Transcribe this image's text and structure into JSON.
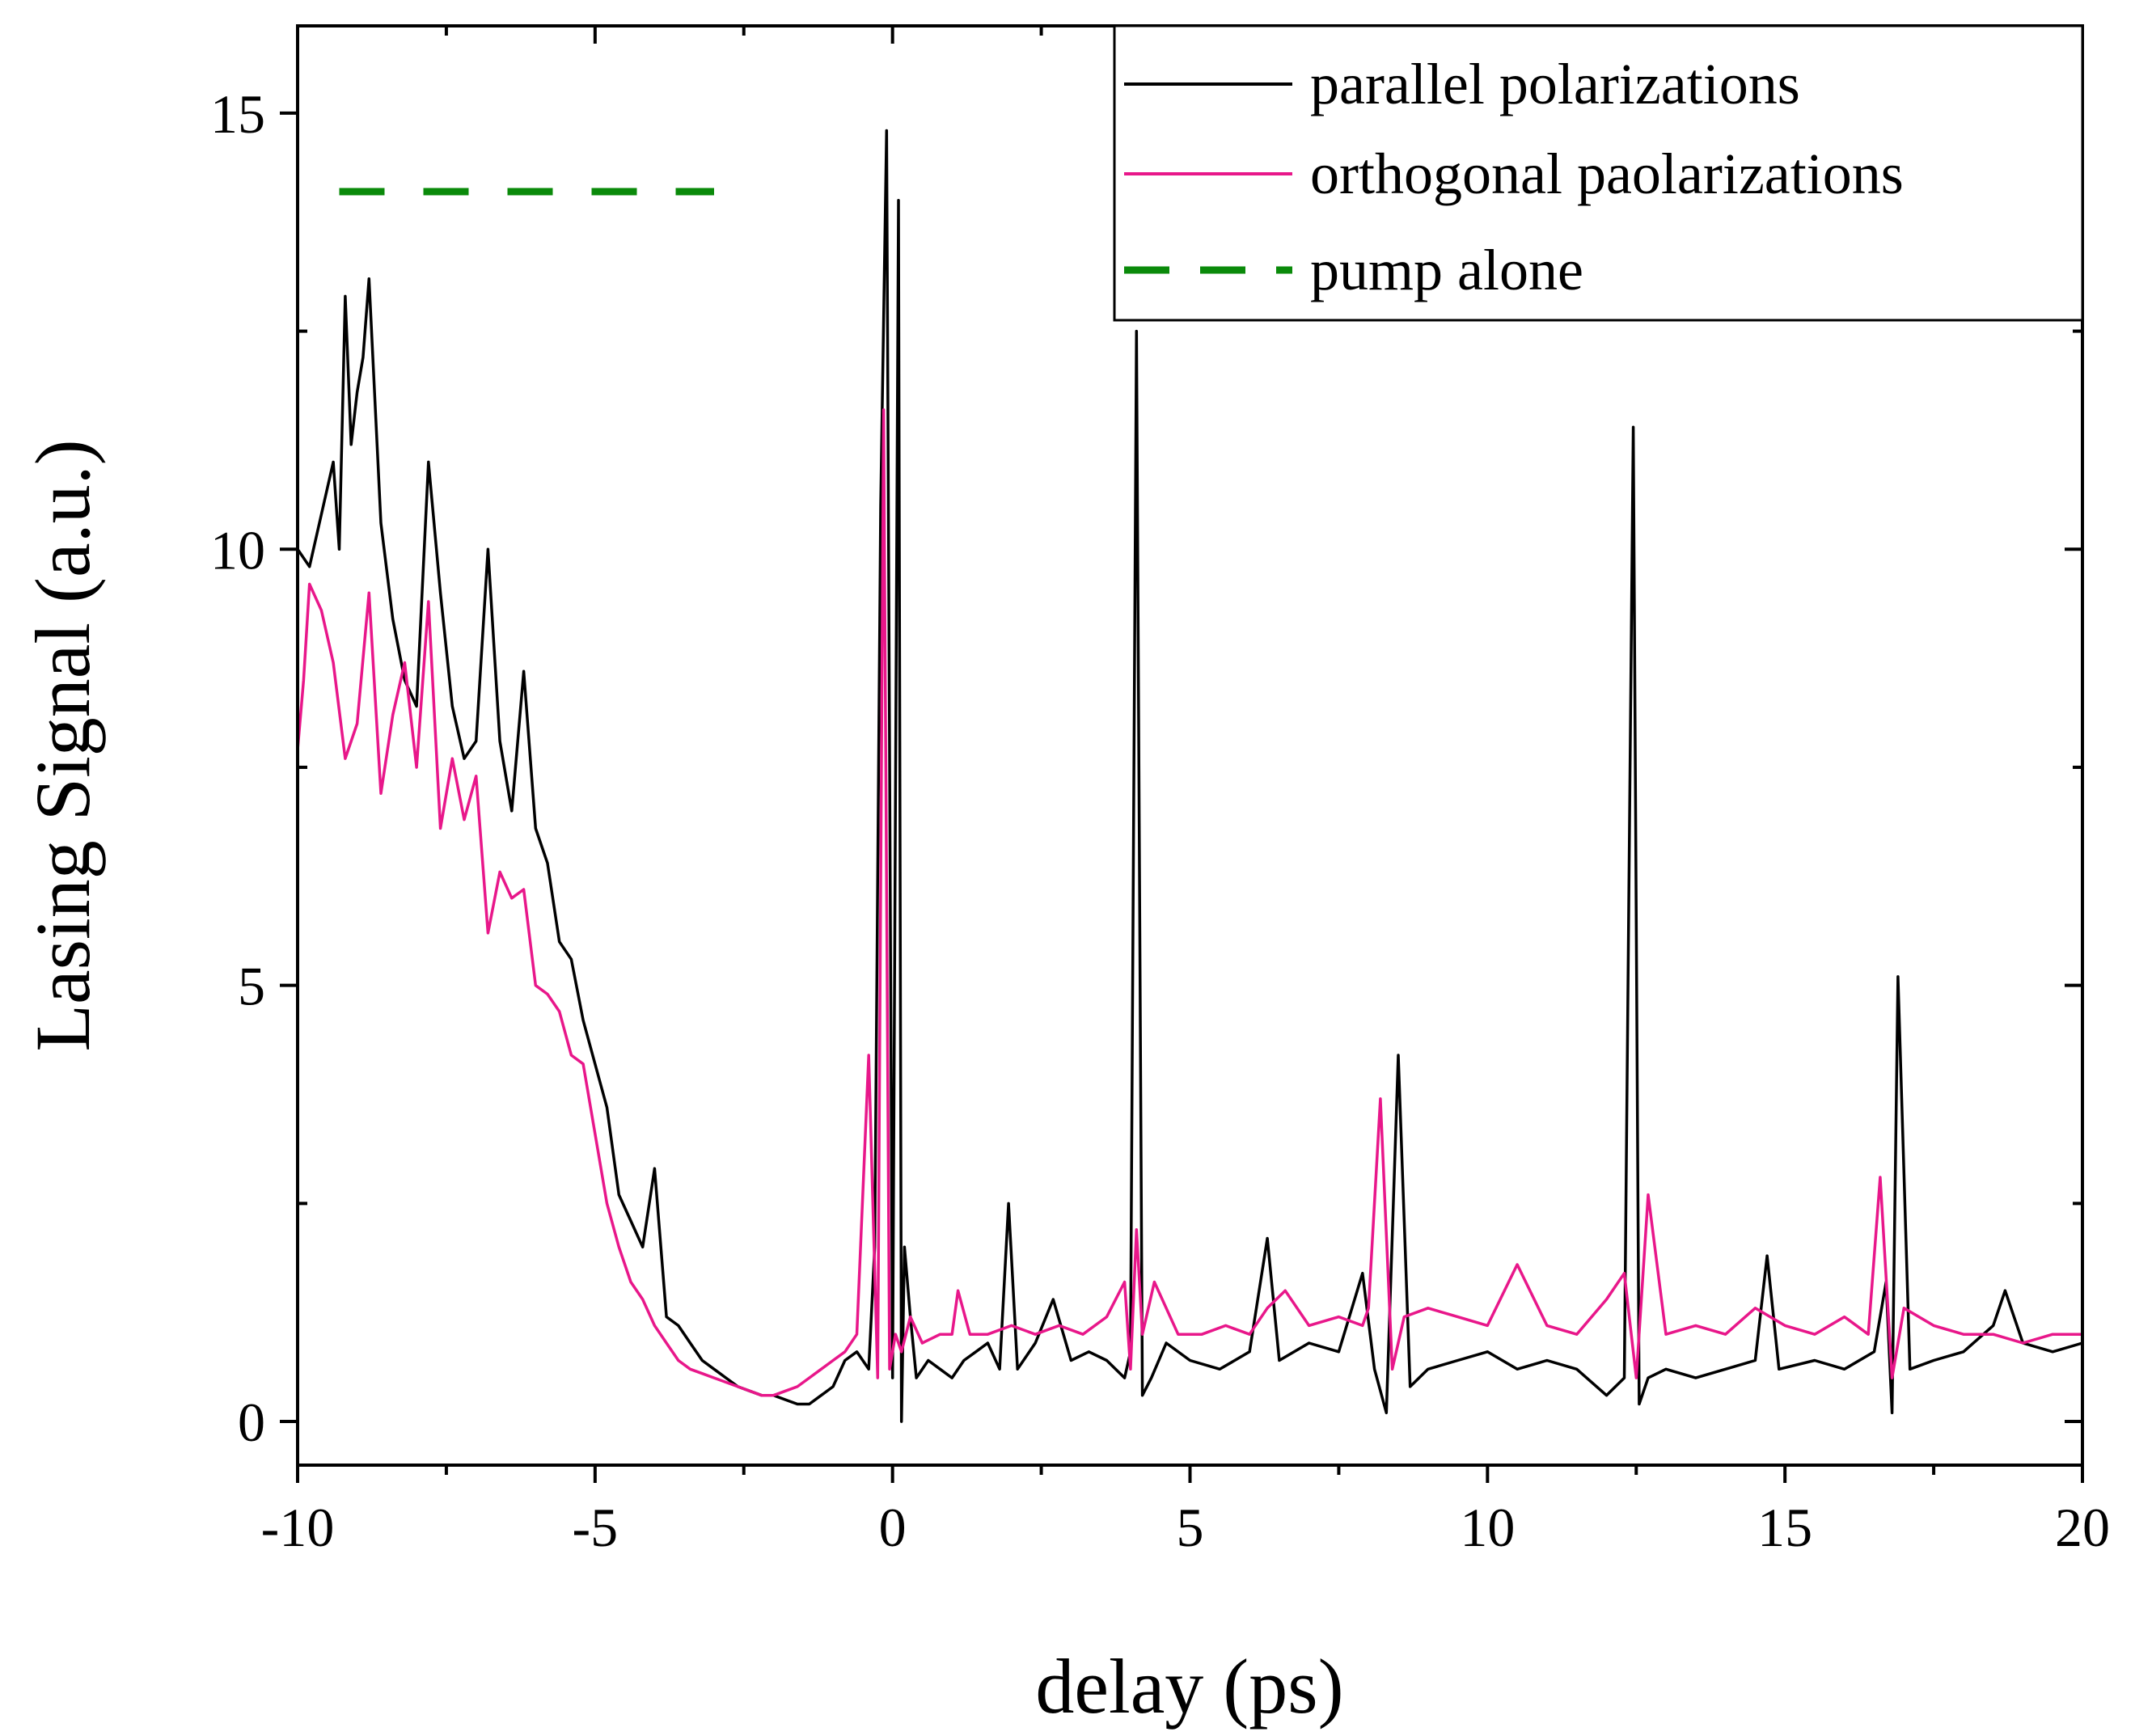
{
  "chart_data": {
    "type": "line",
    "title": "",
    "xlabel": "delay (ps)",
    "ylabel": "Lasing Signal (a.u.)",
    "xlim": [
      -10,
      20
    ],
    "ylim": [
      -0.5,
      16
    ],
    "x_ticks": [
      -10,
      -5,
      0,
      5,
      10,
      15,
      20
    ],
    "x_tick_labels": [
      "-10",
      "-5",
      "0",
      "5",
      "10",
      "15",
      "20"
    ],
    "y_ticks": [
      0,
      5,
      10,
      15
    ],
    "y_tick_labels": [
      "0",
      "5",
      "10",
      "15"
    ],
    "legend_position": "top-right",
    "series": [
      {
        "name": "parallel polarizations",
        "color": "#000000",
        "style": "solid",
        "x": [
          -10,
          -9.8,
          -9.6,
          -9.4,
          -9.3,
          -9.2,
          -9.1,
          -9.0,
          -8.9,
          -8.8,
          -8.6,
          -8.4,
          -8.2,
          -8.0,
          -7.8,
          -7.6,
          -7.4,
          -7.2,
          -7.0,
          -6.8,
          -6.6,
          -6.4,
          -6.2,
          -6.0,
          -5.8,
          -5.6,
          -5.4,
          -5.2,
          -5.0,
          -4.8,
          -4.6,
          -4.4,
          -4.2,
          -4.0,
          -3.8,
          -3.6,
          -3.4,
          -3.2,
          -3.0,
          -2.8,
          -2.6,
          -2.4,
          -2.2,
          -2.0,
          -1.8,
          -1.6,
          -1.4,
          -1.2,
          -1.0,
          -0.8,
          -0.6,
          -0.4,
          -0.3,
          -0.2,
          -0.1,
          0.0,
          0.1,
          0.15,
          0.2,
          0.3,
          0.4,
          0.6,
          0.8,
          1.0,
          1.2,
          1.4,
          1.6,
          1.8,
          1.95,
          2.1,
          2.4,
          2.7,
          3.0,
          3.3,
          3.6,
          3.9,
          4.0,
          4.1,
          4.2,
          4.35,
          4.6,
          5.0,
          5.5,
          6.0,
          6.3,
          6.5,
          7.0,
          7.5,
          7.9,
          8.1,
          8.3,
          8.5,
          8.7,
          9.0,
          9.5,
          10.0,
          10.5,
          11.0,
          11.5,
          12.0,
          12.3,
          12.45,
          12.55,
          12.7,
          13.0,
          13.5,
          14.0,
          14.5,
          14.7,
          14.9,
          15.5,
          16.0,
          16.5,
          16.7,
          16.8,
          16.9,
          17.1,
          17.5,
          18.0,
          18.5,
          18.7,
          19.0,
          19.5,
          20.0
        ],
        "values": [
          10.0,
          9.8,
          10.4,
          11.0,
          10.0,
          12.9,
          11.2,
          11.8,
          12.2,
          13.1,
          10.3,
          9.2,
          8.5,
          8.2,
          11.0,
          9.5,
          8.2,
          7.6,
          7.8,
          10.0,
          7.8,
          7.0,
          8.6,
          6.8,
          6.4,
          5.5,
          5.3,
          4.6,
          4.1,
          3.6,
          2.6,
          2.3,
          2.0,
          2.9,
          1.2,
          1.1,
          0.9,
          0.7,
          0.6,
          0.5,
          0.4,
          0.35,
          0.3,
          0.3,
          0.25,
          0.2,
          0.2,
          0.3,
          0.4,
          0.7,
          0.8,
          0.6,
          2.0,
          10.5,
          14.8,
          0.5,
          14.0,
          0.0,
          2.0,
          1.2,
          0.5,
          0.7,
          0.6,
          0.5,
          0.7,
          0.8,
          0.9,
          0.6,
          2.5,
          0.6,
          0.9,
          1.4,
          0.7,
          0.8,
          0.7,
          0.5,
          0.8,
          12.5,
          0.3,
          0.5,
          0.9,
          0.7,
          0.6,
          0.8,
          2.1,
          0.7,
          0.9,
          0.8,
          1.7,
          0.6,
          0.1,
          4.2,
          0.4,
          0.6,
          0.7,
          0.8,
          0.6,
          0.7,
          0.6,
          0.3,
          0.5,
          11.4,
          0.2,
          0.5,
          0.6,
          0.5,
          0.6,
          0.7,
          1.9,
          0.6,
          0.7,
          0.6,
          0.8,
          1.6,
          0.1,
          5.1,
          0.6,
          0.7,
          0.8,
          1.1,
          1.5,
          0.9,
          0.8,
          0.9
        ]
      },
      {
        "name": "orthogonal paolarizations",
        "color": "#e8178a",
        "style": "solid",
        "x": [
          -10,
          -9.9,
          -9.8,
          -9.6,
          -9.4,
          -9.2,
          -9.0,
          -8.8,
          -8.6,
          -8.4,
          -8.2,
          -8.0,
          -7.8,
          -7.6,
          -7.4,
          -7.2,
          -7.0,
          -6.8,
          -6.6,
          -6.4,
          -6.2,
          -6.0,
          -5.8,
          -5.6,
          -5.4,
          -5.2,
          -5.0,
          -4.8,
          -4.6,
          -4.4,
          -4.2,
          -4.0,
          -3.8,
          -3.6,
          -3.4,
          -3.2,
          -3.0,
          -2.8,
          -2.6,
          -2.4,
          -2.2,
          -2.0,
          -1.8,
          -1.6,
          -1.4,
          -1.2,
          -1.0,
          -0.8,
          -0.6,
          -0.4,
          -0.25,
          -0.15,
          -0.05,
          0.05,
          0.15,
          0.3,
          0.5,
          0.8,
          1.0,
          1.1,
          1.3,
          1.6,
          2.0,
          2.4,
          2.8,
          3.2,
          3.6,
          3.9,
          4.0,
          4.1,
          4.2,
          4.4,
          4.8,
          5.2,
          5.6,
          6.0,
          6.3,
          6.6,
          7.0,
          7.5,
          7.9,
          8.0,
          8.2,
          8.4,
          8.6,
          9.0,
          9.5,
          10.0,
          10.5,
          11.0,
          11.5,
          12.0,
          12.3,
          12.5,
          12.7,
          13.0,
          13.5,
          14.0,
          14.5,
          15.0,
          15.5,
          16.0,
          16.4,
          16.6,
          16.8,
          17.0,
          17.5,
          18.0,
          18.5,
          19.0,
          19.5,
          20.0
        ],
        "values": [
          7.7,
          8.5,
          9.6,
          9.3,
          8.7,
          7.6,
          8.0,
          9.5,
          7.2,
          8.1,
          8.7,
          7.5,
          9.4,
          6.8,
          7.6,
          6.9,
          7.4,
          5.6,
          6.3,
          6.0,
          6.1,
          5.0,
          4.9,
          4.7,
          4.2,
          4.1,
          3.3,
          2.5,
          2.0,
          1.6,
          1.4,
          1.1,
          0.9,
          0.7,
          0.6,
          0.55,
          0.5,
          0.45,
          0.4,
          0.35,
          0.3,
          0.3,
          0.35,
          0.4,
          0.5,
          0.6,
          0.7,
          0.8,
          1.0,
          4.2,
          0.5,
          11.6,
          0.6,
          1.0,
          0.8,
          1.2,
          0.9,
          1.0,
          1.0,
          1.5,
          1.0,
          1.0,
          1.1,
          1.0,
          1.1,
          1.0,
          1.2,
          1.6,
          0.6,
          2.2,
          1.0,
          1.6,
          1.0,
          1.0,
          1.1,
          1.0,
          1.3,
          1.5,
          1.1,
          1.2,
          1.1,
          1.3,
          3.7,
          0.6,
          1.2,
          1.3,
          1.2,
          1.1,
          1.8,
          1.1,
          1.0,
          1.4,
          1.7,
          0.5,
          2.6,
          1.0,
          1.1,
          1.0,
          1.3,
          1.1,
          1.0,
          1.2,
          1.0,
          2.8,
          0.5,
          1.3,
          1.1,
          1.0,
          1.0,
          0.9,
          1.0,
          1.0
        ]
      },
      {
        "name": "pump alone",
        "color": "#0a8a0a",
        "style": "dashed",
        "x": [
          -9.3,
          -3.0
        ],
        "values": [
          14.1,
          14.1
        ]
      }
    ]
  }
}
